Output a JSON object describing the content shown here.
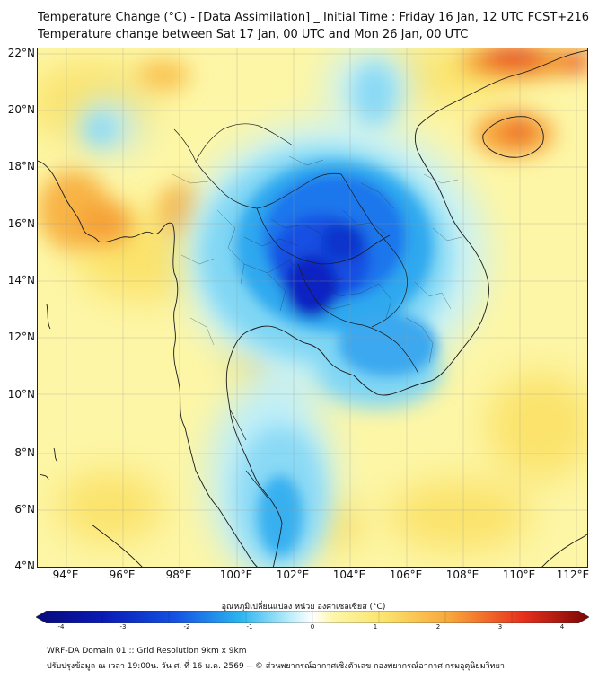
{
  "title_line1": "Temperature Change (°C) - [Data Assimilation] _ Initial Time : Friday 16 Jan, 12 UTC FCST+216",
  "title_line2": "Temperature change between Sat 17 Jan, 00 UTC and Mon 26 Jan, 00 UTC",
  "lat_labels": [
    "22°N",
    "20°N",
    "18°N",
    "16°N",
    "14°N",
    "12°N",
    "10°N",
    "8°N",
    "6°N",
    "4°N"
  ],
  "lon_labels": [
    "94°E",
    "96°E",
    "98°E",
    "100°E",
    "102°E",
    "104°E",
    "106°E",
    "108°E",
    "110°E",
    "112°E"
  ],
  "colorbar": {
    "title": "อุณหภูมิเปลี่ยนแปลง หน่วย องศาเซลเซียส (°C)",
    "ticks": [
      "-4",
      "-3",
      "-2",
      "-1",
      "0",
      "1",
      "2",
      "3",
      "4"
    ],
    "min": -4,
    "max": 4
  },
  "footer_line1": "WRF-DA Domain 01 :: Grid Resolution 9km x 9km",
  "footer_line2": "ปรับปรุงข้อมูล ณ เวลา 19:00น. วัน ศ. ที่ 16 ม.ค. 2569 -- © ส่วนพยากรณ์อากาศเชิงตัวเลข กองพยากรณ์อากาศ กรมอุตุนิยมวิทยา",
  "colors": {
    "warm_background": "#fef5a0",
    "warm_orange": "#f8a53a",
    "hot_red": "#e8301c",
    "cool_light": "#8fe3f5",
    "cool_mid": "#2bb5f0",
    "cold_blue": "#1050e6",
    "coldest": "#0a1ab4"
  }
}
